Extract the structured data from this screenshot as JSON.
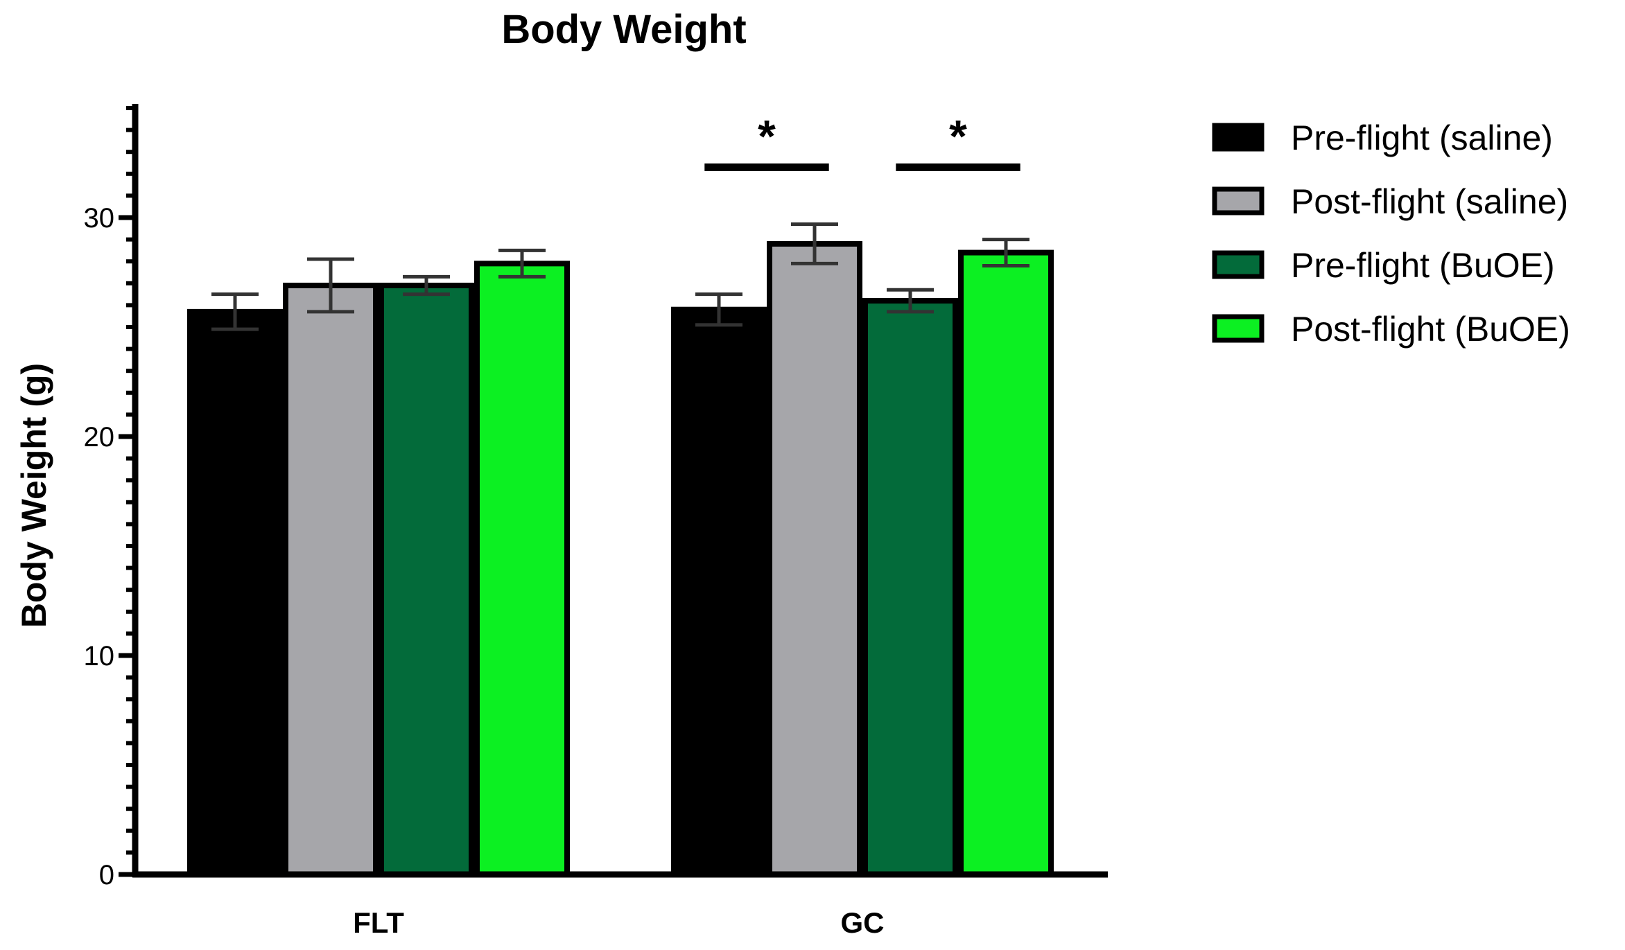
{
  "chart_data": {
    "type": "bar",
    "title": "Body Weight",
    "xlabel": "",
    "ylabel": "Body Weight (g)",
    "ylim": [
      0,
      35
    ],
    "yticks": [
      0,
      10,
      20,
      30
    ],
    "categories": [
      "FLT",
      "GC"
    ],
    "series": [
      {
        "name": "Pre-flight (saline)",
        "color": "#000000",
        "values": [
          25.7,
          25.8
        ],
        "errors": [
          0.8,
          0.7
        ]
      },
      {
        "name": "Post-flight (saline)",
        "color": "#a6a6aa",
        "values": [
          26.9,
          28.8
        ],
        "errors": [
          1.2,
          0.9
        ]
      },
      {
        "name": "Pre-flight (BuOE)",
        "color": "#036b3a",
        "values": [
          26.9,
          26.2
        ],
        "errors": [
          0.4,
          0.5
        ]
      },
      {
        "name": "Post-flight (BuOE)",
        "color": "#0cf022",
        "values": [
          27.9,
          28.4
        ],
        "errors": [
          0.6,
          0.6
        ]
      }
    ],
    "significance": [
      {
        "category": "GC",
        "from": 0,
        "to": 1,
        "y": 32.3,
        "label": "*"
      },
      {
        "category": "GC",
        "from": 2,
        "to": 3,
        "y": 32.3,
        "label": "*"
      }
    ],
    "legend_position": "right",
    "grid": false
  }
}
